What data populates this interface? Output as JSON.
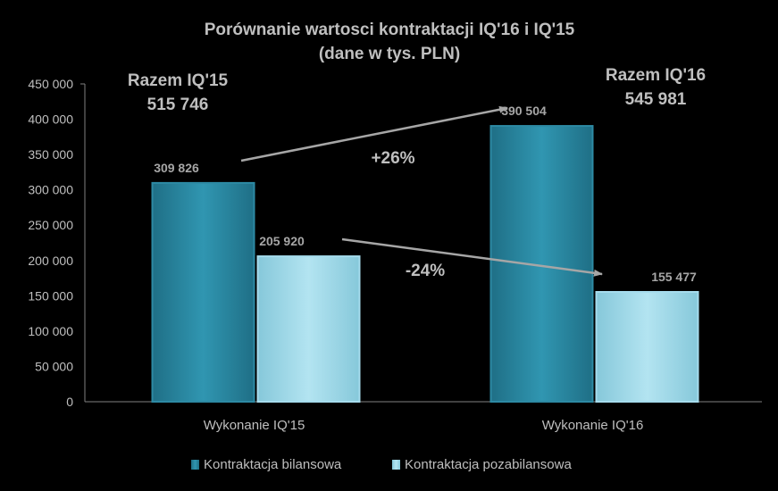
{
  "chart_data": {
    "type": "bar",
    "title": [
      "Porównanie wartosci kontraktacji IQ'16 i IQ'15",
      "(dane w tys. PLN)"
    ],
    "categories": [
      "Wykonanie IQ'15",
      "Wykonanie IQ'16"
    ],
    "series": [
      {
        "name": "Kontraktacja bilansowa",
        "values": [
          309826,
          390504
        ],
        "labels": [
          "309 826",
          "390 504"
        ],
        "color": "#2e8ca6"
      },
      {
        "name": "Kontraktacja pozabilansowa",
        "values": [
          205920,
          155477
        ],
        "labels": [
          "205 920",
          "155 477"
        ],
        "color": "#9ed8e8"
      }
    ],
    "ylim": [
      0,
      450000
    ],
    "yticks": [
      "0",
      "50 000",
      "100 000",
      "150 000",
      "200 000",
      "250 000",
      "300 000",
      "350 000",
      "400 000",
      "450 000"
    ],
    "totals": [
      {
        "label": "Razem IQ'15",
        "value": "515 746"
      },
      {
        "label": "Razem IQ'16",
        "value": "545 981"
      }
    ],
    "changes": [
      "+26%",
      "-24%"
    ],
    "legend_position": "bottom",
    "grid": false
  }
}
